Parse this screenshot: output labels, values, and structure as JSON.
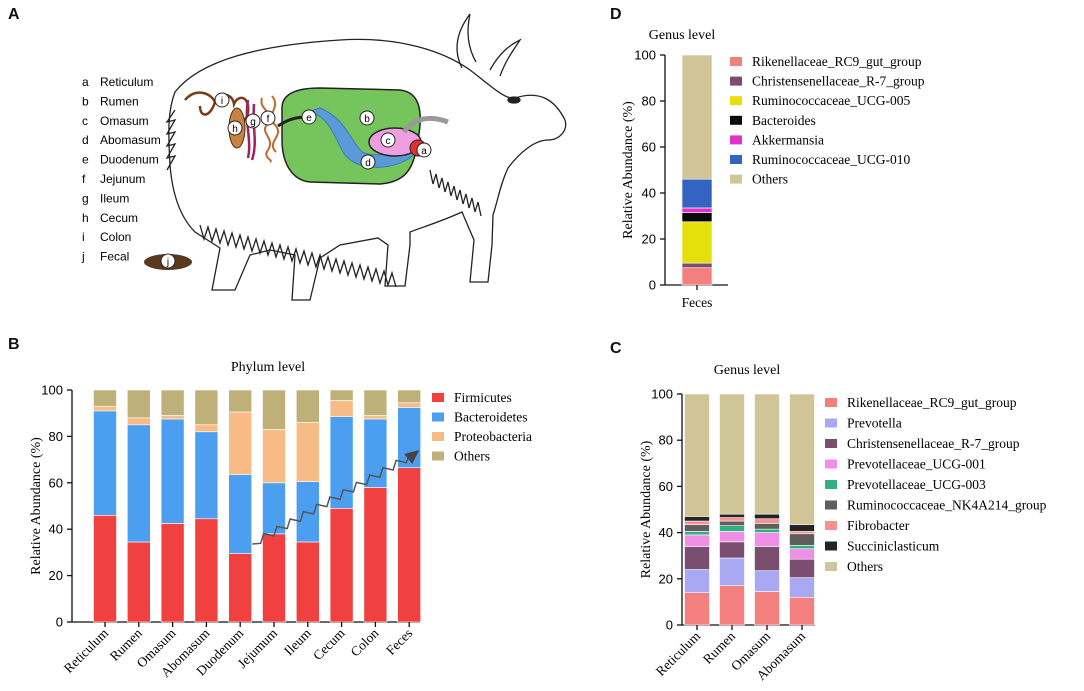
{
  "panels": {
    "A": "A",
    "B": "B",
    "C": "C",
    "D": "D"
  },
  "anatomy": {
    "legend": [
      {
        "key": "a",
        "label": "Reticulum"
      },
      {
        "key": "b",
        "label": "Rumen"
      },
      {
        "key": "c",
        "label": "Omasum"
      },
      {
        "key": "d",
        "label": "Abomasum"
      },
      {
        "key": "e",
        "label": "Duodenum"
      },
      {
        "key": "f",
        "label": "Jejunum"
      },
      {
        "key": "g",
        "label": "Ileum"
      },
      {
        "key": "h",
        "label": "Cecum"
      },
      {
        "key": "i",
        "label": "Colon"
      },
      {
        "key": "j",
        "label": "Fecal"
      }
    ]
  },
  "chart_data": [
    {
      "id": "B",
      "type": "bar",
      "stacked": true,
      "title": "Phylum level",
      "xlabel": "",
      "ylabel": "Relative Abundance (%)",
      "ylim": [
        0,
        100
      ],
      "yticks": [
        "0",
        "20",
        "40",
        "60",
        "80",
        "100"
      ],
      "categories": [
        "Reticulum",
        "Rumen",
        "Omasum",
        "Abomasum",
        "Duodenum",
        "Jejumum",
        "Ileum",
        "Cecum",
        "Colon",
        "Feces"
      ],
      "series": [
        {
          "name": "Firmicutes",
          "color": "#f04040",
          "values": [
            46,
            34.5,
            42.5,
            44.5,
            29.5,
            38,
            34.5,
            49,
            58,
            66.5
          ]
        },
        {
          "name": "Bacteroidetes",
          "color": "#4c9ef0",
          "values": [
            45,
            50.5,
            45,
            37.5,
            34,
            22,
            26,
            39.5,
            29.5,
            26
          ]
        },
        {
          "name": "Proteobacteria",
          "color": "#f9bb86",
          "values": [
            2,
            3,
            1.5,
            3,
            27,
            23,
            25.5,
            7,
            1.5,
            2
          ]
        },
        {
          "name": "Others",
          "color": "#bfb079",
          "values": [
            7,
            12,
            11,
            15,
            9.5,
            17,
            14,
            4.5,
            11,
            5.5
          ]
        }
      ],
      "annotation": "trend arrow from Duodenum to Feces"
    },
    {
      "id": "C",
      "type": "bar",
      "stacked": true,
      "title": "Genus level",
      "xlabel": "",
      "ylabel": "Relative Abundance (%)",
      "ylim": [
        0,
        100
      ],
      "yticks": [
        "0",
        "20",
        "40",
        "60",
        "80",
        "100"
      ],
      "categories": [
        "Reticulum",
        "Rumen",
        "Omasum",
        "Abomasum"
      ],
      "series": [
        {
          "name": "Rikenellaceae_RC9_gut_group",
          "color": "#f47f7f",
          "values": [
            14,
            17,
            14.5,
            12
          ]
        },
        {
          "name": "Prevotella",
          "color": "#a9a8f2",
          "values": [
            10,
            12,
            9,
            8.5
          ]
        },
        {
          "name": "Christensenellaceae_R-7_group",
          "color": "#7a4e6e",
          "values": [
            10,
            7,
            10.5,
            8
          ]
        },
        {
          "name": "Prevotellaceae_UCG-001",
          "color": "#ef8fe6",
          "values": [
            5,
            4.5,
            6,
            4.5
          ]
        },
        {
          "name": "Prevotellaceae_UCG-003",
          "color": "#33b083",
          "values": [
            1.5,
            2.5,
            1.5,
            1.5
          ]
        },
        {
          "name": "Ruminococcaceae_NK4A214_group",
          "color": "#5e5e5e",
          "values": [
            3,
            2,
            2.5,
            5
          ]
        },
        {
          "name": "Fibrobacter",
          "color": "#f99090",
          "values": [
            1.5,
            1.5,
            2,
            1
          ]
        },
        {
          "name": "Succiniclasticum",
          "color": "#242424",
          "values": [
            2,
            1.5,
            2,
            3
          ]
        },
        {
          "name": "Others",
          "color": "#cfc597",
          "values": [
            53,
            52,
            52,
            56.5
          ]
        }
      ]
    },
    {
      "id": "D",
      "type": "bar",
      "stacked": true,
      "title": "Genus level",
      "xlabel": "",
      "ylabel": "Relative Abundance (%)",
      "ylim": [
        0,
        100
      ],
      "yticks": [
        "0",
        "20",
        "40",
        "60",
        "80",
        "100"
      ],
      "categories": [
        "Feces"
      ],
      "series": [
        {
          "name": "Rikenellaceae_RC9_gut_group",
          "color": "#f47f7f",
          "values": [
            7.5
          ]
        },
        {
          "name": "Christensenellaceae_R-7_group",
          "color": "#7a4e6e",
          "values": [
            2
          ]
        },
        {
          "name": "Ruminococcaceae_UCG-005",
          "color": "#e5e00c",
          "values": [
            18
          ]
        },
        {
          "name": "Bacteroides",
          "color": "#0a0a0a",
          "values": [
            4
          ]
        },
        {
          "name": "Akkermansia",
          "color": "#e033c4",
          "values": [
            2
          ]
        },
        {
          "name": "Ruminococcaceae_UCG-010",
          "color": "#3563c2",
          "values": [
            12.5
          ]
        },
        {
          "name": "Others",
          "color": "#cfc597",
          "values": [
            54
          ]
        }
      ]
    }
  ]
}
